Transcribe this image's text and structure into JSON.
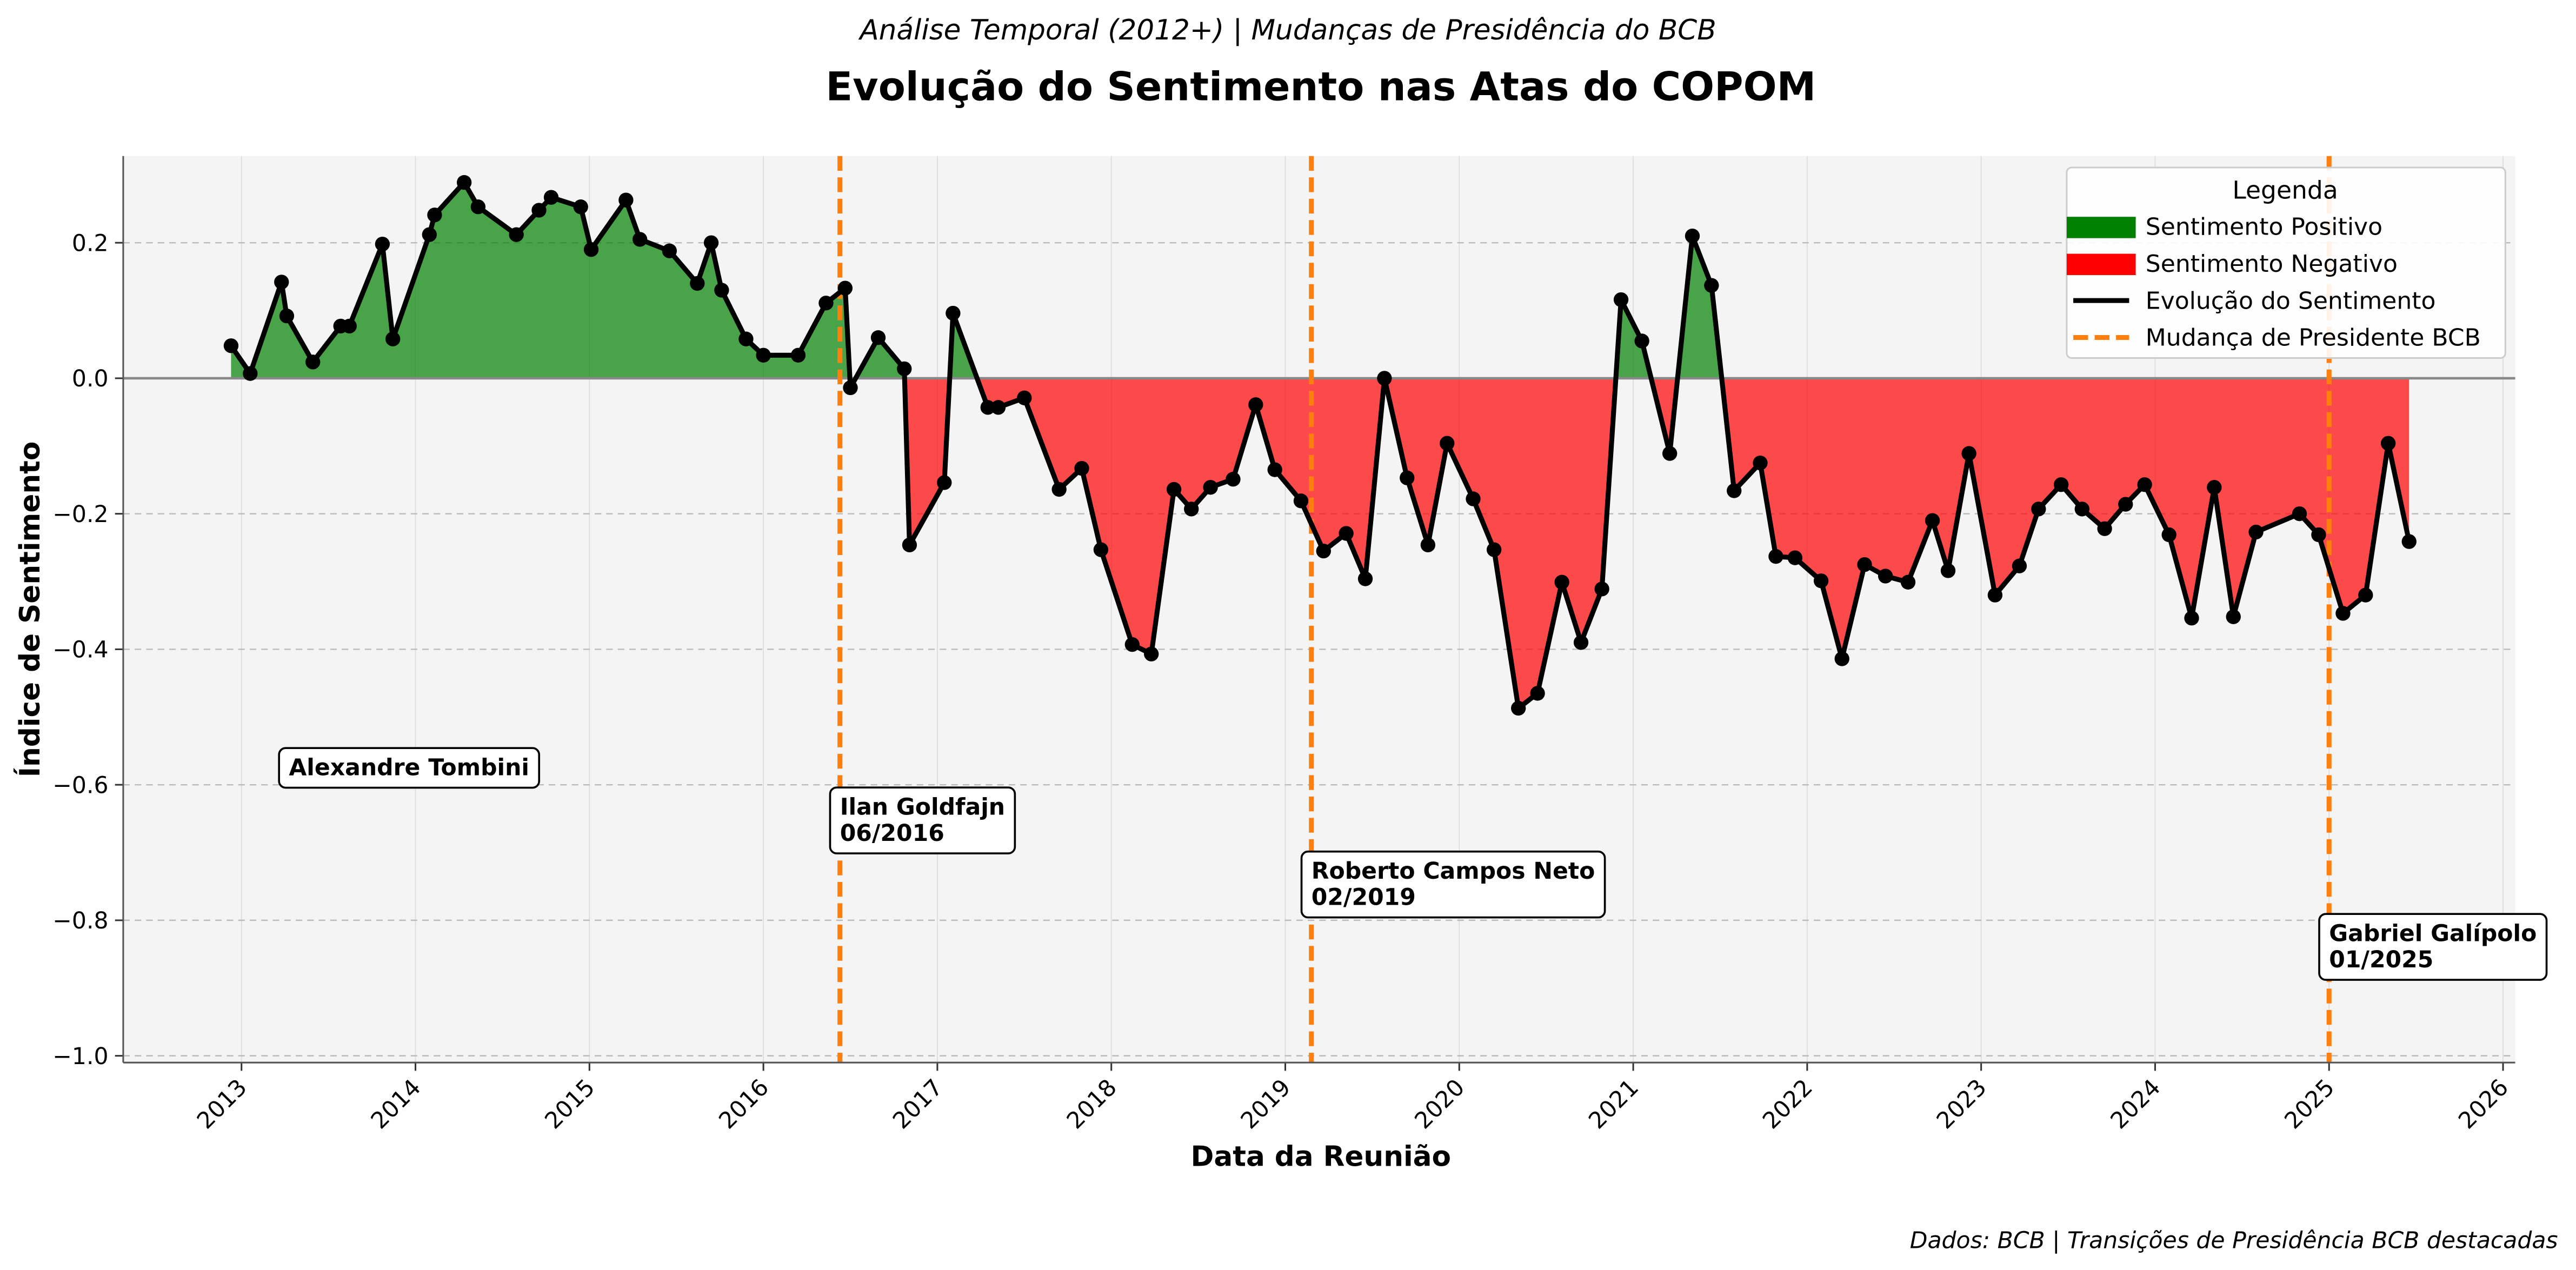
{
  "chart_data": {
    "type": "line",
    "subtitle": "Análise Temporal (2012+) | Mudanças de Presidência do BCB",
    "title": "Evolução do Sentimento nas Atas do COPOM",
    "x_label": "Data da Reunião",
    "y_label": "Índice de Sentimento",
    "footer": "Dados: BCB | Transições de Presidência BCB destacadas",
    "xlim": [
      2012.32,
      2026.07
    ],
    "ylim": [
      -1.01,
      0.328
    ],
    "xticks": [
      2013,
      2014,
      2015,
      2016,
      2017,
      2018,
      2019,
      2020,
      2021,
      2022,
      2023,
      2024,
      2025,
      2026
    ],
    "yticks": [
      {
        "value": -1.0,
        "label": "−1.0"
      },
      {
        "value": -0.8,
        "label": "−0.8"
      },
      {
        "value": -0.6,
        "label": "−0.6"
      },
      {
        "value": -0.4,
        "label": "−0.4"
      },
      {
        "value": -0.2,
        "label": "−0.2"
      },
      {
        "value": 0.0,
        "label": "0.0"
      },
      0.2
    ],
    "grid": true,
    "legend": {
      "title": "Legenda",
      "corner": "upper right",
      "entries": [
        {
          "name": "Sentimento Positivo",
          "color": "#008000",
          "kind": "patch"
        },
        {
          "name": "Sentimento Negativo",
          "color": "#ff0000",
          "kind": "patch"
        },
        {
          "name": "Evolução do Sentimento",
          "color": "#000000",
          "kind": "line"
        },
        {
          "name": "Mudança de Presidente BCB",
          "color": "#ff7f0e",
          "kind": "dashed"
        }
      ]
    },
    "series": [
      {
        "name": "Evolução do Sentimento",
        "color": "#000000",
        "positive_color": "#008000",
        "negative_color": "#ff0000",
        "x": [
          2012.94,
          2013.05,
          2013.23,
          2013.26,
          2013.41,
          2013.57,
          2013.62,
          2013.81,
          2013.87,
          2014.08,
          2014.11,
          2014.28,
          2014.36,
          2014.58,
          2014.71,
          2014.78,
          2014.95,
          2015.01,
          2015.21,
          2015.29,
          2015.46,
          2015.62,
          2015.7,
          2015.76,
          2015.9,
          2016.0,
          2016.2,
          2016.36,
          2016.47,
          2016.5,
          2016.66,
          2016.81,
          2016.84,
          2017.04,
          2017.09,
          2017.29,
          2017.35,
          2017.5,
          2017.7,
          2017.83,
          2017.94,
          2018.12,
          2018.23,
          2018.36,
          2018.46,
          2018.57,
          2018.7,
          2018.83,
          2018.94,
          2019.09,
          2019.22,
          2019.35,
          2019.46,
          2019.57,
          2019.7,
          2019.82,
          2019.93,
          2020.08,
          2020.2,
          2020.34,
          2020.45,
          2020.59,
          2020.7,
          2020.82,
          2020.93,
          2021.05,
          2021.21,
          2021.34,
          2021.45,
          2021.58,
          2021.73,
          2021.82,
          2021.93,
          2022.08,
          2022.2,
          2022.33,
          2022.45,
          2022.58,
          2022.72,
          2022.81,
          2022.93,
          2023.08,
          2023.22,
          2023.33,
          2023.46,
          2023.58,
          2023.71,
          2023.83,
          2023.94,
          2024.08,
          2024.21,
          2024.34,
          2024.45,
          2024.58,
          2024.83,
          2024.94,
          2025.08,
          2025.21,
          2025.34,
          2025.46
        ],
        "values": [
          0.048,
          0.007,
          0.142,
          0.092,
          0.024,
          0.077,
          0.077,
          0.198,
          0.058,
          0.212,
          0.241,
          0.289,
          0.253,
          0.212,
          0.248,
          0.267,
          0.253,
          0.19,
          0.263,
          0.205,
          0.188,
          0.14,
          0.2,
          0.13,
          0.058,
          0.034,
          0.034,
          0.111,
          0.133,
          -0.014,
          0.06,
          0.014,
          -0.246,
          -0.154,
          0.096,
          -0.043,
          -0.043,
          -0.029,
          -0.164,
          -0.133,
          -0.253,
          -0.393,
          -0.407,
          -0.164,
          -0.193,
          -0.161,
          -0.149,
          -0.039,
          -0.135,
          -0.181,
          -0.255,
          -0.229,
          -0.296,
          0.0,
          -0.147,
          -0.246,
          -0.096,
          -0.178,
          -0.253,
          -0.487,
          -0.465,
          -0.301,
          -0.39,
          -0.311,
          0.116,
          0.055,
          -0.111,
          0.21,
          0.137,
          -0.166,
          -0.125,
          -0.263,
          -0.265,
          -0.299,
          -0.414,
          -0.275,
          -0.292,
          -0.301,
          -0.21,
          -0.284,
          -0.111,
          -0.32,
          -0.277,
          -0.193,
          -0.157,
          -0.193,
          -0.222,
          -0.186,
          -0.157,
          -0.231,
          -0.354,
          -0.161,
          -0.352,
          -0.227,
          -0.2,
          -0.231,
          -0.347,
          -0.32,
          -0.096,
          -0.241
        ]
      }
    ],
    "change_color": "#ff7f0e",
    "presidents": [
      {
        "name": "Alexandre Tombini"
      },
      {
        "name": "Ilan Goldfajn",
        "date": "06/2016",
        "x": 2016.44
      },
      {
        "name": "Roberto Campos Neto",
        "date": "02/2019",
        "x": 2019.15
      },
      {
        "name": "Gabriel Galípolo",
        "date": "01/2025",
        "x": 2025.0
      }
    ]
  }
}
